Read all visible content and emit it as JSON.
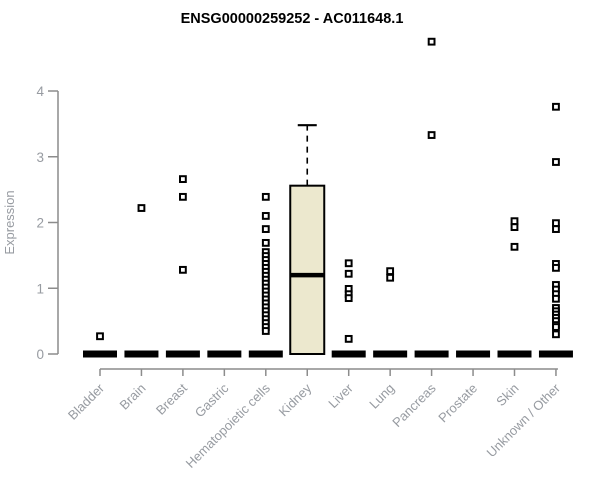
{
  "chart_data": {
    "type": "boxplot",
    "title": "ENSG00000259252 - AC011648.1",
    "ylabel": "Expression",
    "xlabel": "",
    "ylim": [
      0,
      4
    ],
    "yticks": [
      0,
      1,
      2,
      3,
      4
    ],
    "grid": false,
    "legend": "none",
    "colors": {
      "box_fill": "#ece8ce",
      "box_stroke": "#000000",
      "collapsed_box": "#000000",
      "axis_line": "#8c8c8c",
      "tick_label": "#979ba1",
      "title": "#000000",
      "outlier_stroke": "#000000",
      "outlier_fill": "#ffffff"
    },
    "categories": [
      "Bladder",
      "Brain",
      "Breast",
      "Gastric",
      "Hematopoietic cells",
      "Kidney",
      "Liver",
      "Lung",
      "Pancreas",
      "Prostate",
      "Skin",
      "Unknown / Other"
    ],
    "series": [
      {
        "category": "Bladder",
        "q1": 0,
        "median": 0,
        "q3": 0,
        "whisker_low": 0,
        "whisker_high": 0,
        "outliers": [
          0.27
        ]
      },
      {
        "category": "Brain",
        "q1": 0,
        "median": 0,
        "q3": 0,
        "whisker_low": 0,
        "whisker_high": 0,
        "outliers": [
          2.22
        ]
      },
      {
        "category": "Breast",
        "q1": 0,
        "median": 0,
        "q3": 0,
        "whisker_low": 0,
        "whisker_high": 0,
        "outliers": [
          2.66,
          2.39,
          1.28
        ]
      },
      {
        "category": "Gastric",
        "q1": 0,
        "median": 0,
        "q3": 0,
        "whisker_low": 0,
        "whisker_high": 0,
        "outliers": []
      },
      {
        "category": "Hematopoietic cells",
        "q1": 0,
        "median": 0,
        "q3": 0,
        "whisker_low": 0,
        "whisker_high": 0,
        "outliers": [
          2.39,
          2.1,
          1.9,
          1.69,
          1.55,
          1.49,
          1.43,
          1.37,
          1.31,
          1.25,
          1.19,
          1.13,
          1.07,
          1.01,
          0.95,
          0.89,
          0.83,
          0.77,
          0.71,
          0.65,
          0.59,
          0.53,
          0.47,
          0.41,
          0.35
        ]
      },
      {
        "category": "Kidney",
        "q1": 0,
        "median": 1.2,
        "q3": 2.56,
        "whisker_low": 0,
        "whisker_high": 3.48,
        "outliers": []
      },
      {
        "category": "Liver",
        "q1": 0,
        "median": 0,
        "q3": 0,
        "whisker_low": 0,
        "whisker_high": 0,
        "outliers": [
          1.38,
          1.22,
          0.99,
          0.91,
          0.85,
          0.23
        ]
      },
      {
        "category": "Lung",
        "q1": 0,
        "median": 0,
        "q3": 0,
        "whisker_low": 0,
        "whisker_high": 0,
        "outliers": [
          1.26,
          1.16
        ]
      },
      {
        "category": "Pancreas",
        "q1": 0,
        "median": 0,
        "q3": 0,
        "whisker_low": 0,
        "whisker_high": 0,
        "outliers": [
          4.75,
          3.33
        ]
      },
      {
        "category": "Prostate",
        "q1": 0,
        "median": 0,
        "q3": 0,
        "whisker_low": 0,
        "whisker_high": 0,
        "outliers": []
      },
      {
        "category": "Skin",
        "q1": 0,
        "median": 0,
        "q3": 0,
        "whisker_low": 0,
        "whisker_high": 0,
        "outliers": [
          2.02,
          1.93,
          1.63
        ]
      },
      {
        "category": "Unknown / Other",
        "q1": 0,
        "median": 0,
        "q3": 0,
        "whisker_low": 0,
        "whisker_high": 0,
        "outliers": [
          3.76,
          2.92,
          1.99,
          1.9,
          1.37,
          1.31,
          1.05,
          0.98,
          0.91,
          0.84,
          0.7,
          0.65,
          0.6,
          0.55,
          0.5,
          0.44,
          0.41,
          0.3
        ]
      }
    ]
  }
}
